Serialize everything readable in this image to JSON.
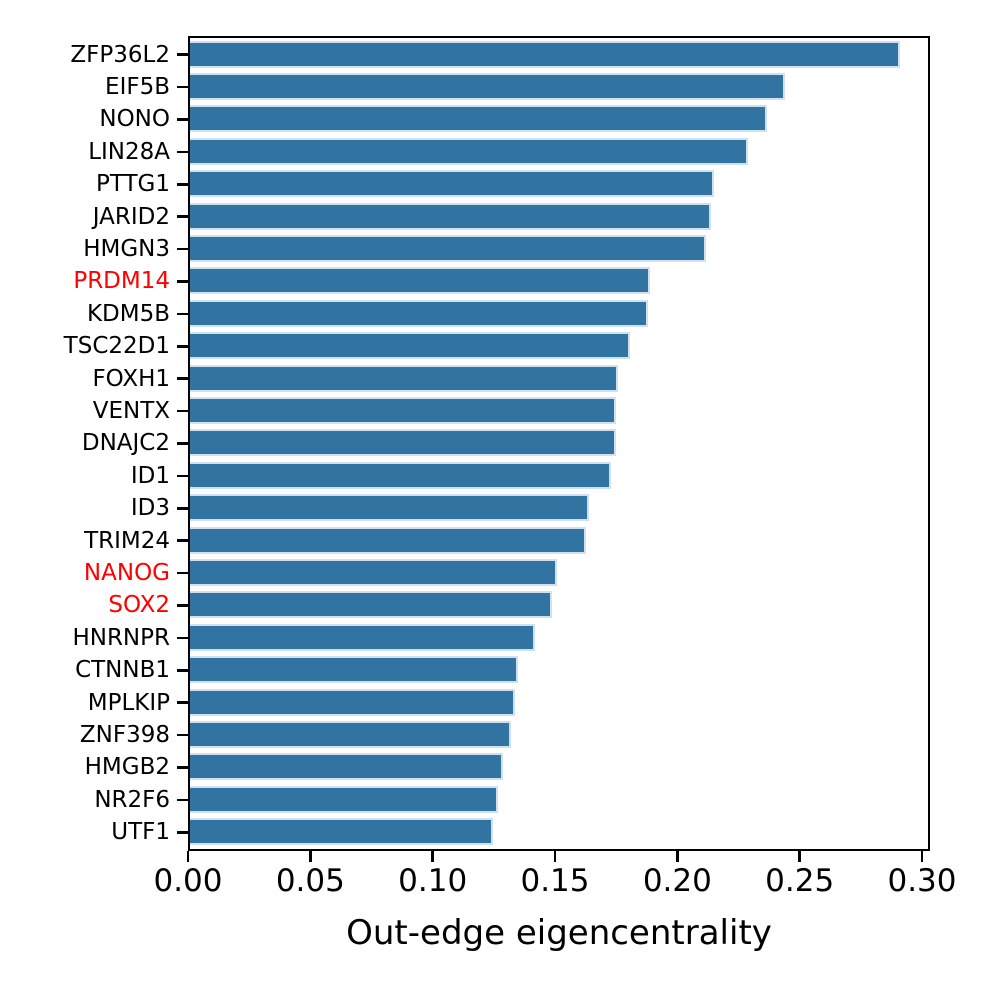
{
  "chart_data": {
    "type": "bar",
    "orientation": "horizontal",
    "title": "",
    "xlabel": "Out-edge eigencentrality",
    "ylabel": "",
    "xlim": [
      0,
      0.3033
    ],
    "grid": false,
    "legend": "none",
    "bar_color": "#3274a1",
    "bar_edge_color": "#cfe0ee",
    "highlight_label_color": "#ff0000",
    "text_color": "#000000",
    "x_ticks": [
      0.0,
      0.05,
      0.1,
      0.15,
      0.2,
      0.25,
      0.3
    ],
    "x_tick_labels": [
      "0.00",
      "0.05",
      "0.10",
      "0.15",
      "0.20",
      "0.25",
      "0.30"
    ],
    "categories": [
      "ZFP36L2",
      "EIF5B",
      "NONO",
      "LIN28A",
      "PTTG1",
      "JARID2",
      "HMGN3",
      "PRDM14",
      "KDM5B",
      "TSC22D1",
      "FOXH1",
      "VENTX",
      "DNAJC2",
      "ID1",
      "ID3",
      "TRIM24",
      "NANOG",
      "SOX2",
      "HNRNPR",
      "CTNNB1",
      "MPLKIP",
      "ZNF398",
      "HMGB2",
      "NR2F6",
      "UTF1"
    ],
    "values": [
      0.29,
      0.243,
      0.236,
      0.228,
      0.214,
      0.213,
      0.211,
      0.188,
      0.187,
      0.18,
      0.175,
      0.174,
      0.174,
      0.172,
      0.163,
      0.162,
      0.15,
      0.148,
      0.141,
      0.134,
      0.133,
      0.131,
      0.128,
      0.126,
      0.124
    ],
    "highlighted_categories": [
      "PRDM14",
      "NANOG",
      "SOX2"
    ]
  }
}
